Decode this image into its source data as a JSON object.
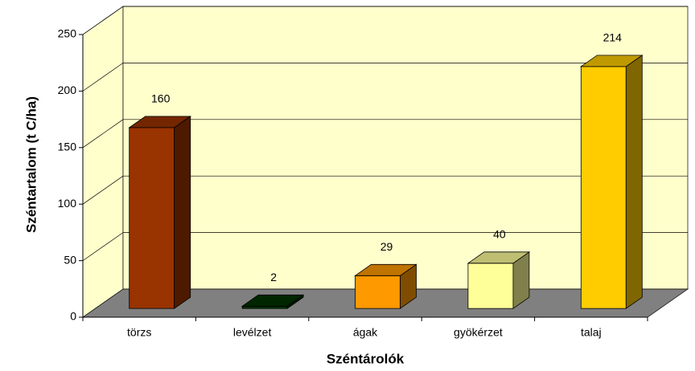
{
  "chart_data": {
    "type": "bar3d",
    "categories": [
      "törzs",
      "levélzet",
      "ágak",
      "gyökérzet",
      "talaj"
    ],
    "values": [
      160,
      2,
      29,
      40,
      214
    ],
    "colors": [
      "#993300",
      "#003300",
      "#ff9900",
      "#ffff99",
      "#ffcc00"
    ],
    "ylim": [
      0,
      250
    ],
    "yticks": [
      0,
      50,
      100,
      150,
      200,
      250
    ],
    "grid": true,
    "ylabel": "Széntartalom (t C/ha)",
    "xlabel": "Széntárolók"
  }
}
